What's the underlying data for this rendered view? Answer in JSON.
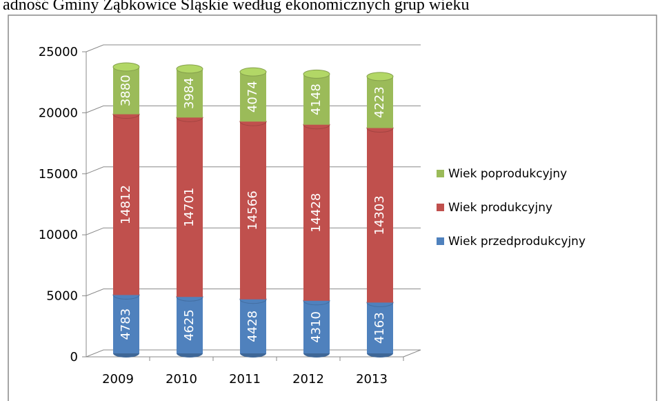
{
  "chart_data": {
    "type": "bar",
    "stacked": true,
    "title": "adność Gminy Ząbkowice Śląskie według ekonomicznych grup wieku",
    "categories": [
      "2009",
      "2010",
      "2011",
      "2012",
      "2013"
    ],
    "series": [
      {
        "name": "Wiek przedprodukcyjny",
        "color": "#4f81bd",
        "values": [
          4783,
          4625,
          4428,
          4310,
          4163
        ]
      },
      {
        "name": "Wiek produkcyjny",
        "color": "#c0504d",
        "values": [
          14812,
          14701,
          14566,
          14428,
          14303
        ]
      },
      {
        "name": "Wiek poprodukcyjny",
        "color": "#9bbb59",
        "values": [
          3880,
          3984,
          4074,
          4148,
          4223
        ]
      }
    ],
    "ylim": [
      0,
      25000
    ],
    "yticks": [
      0,
      5000,
      10000,
      15000,
      20000,
      25000
    ],
    "grid": true,
    "legend": "right"
  }
}
